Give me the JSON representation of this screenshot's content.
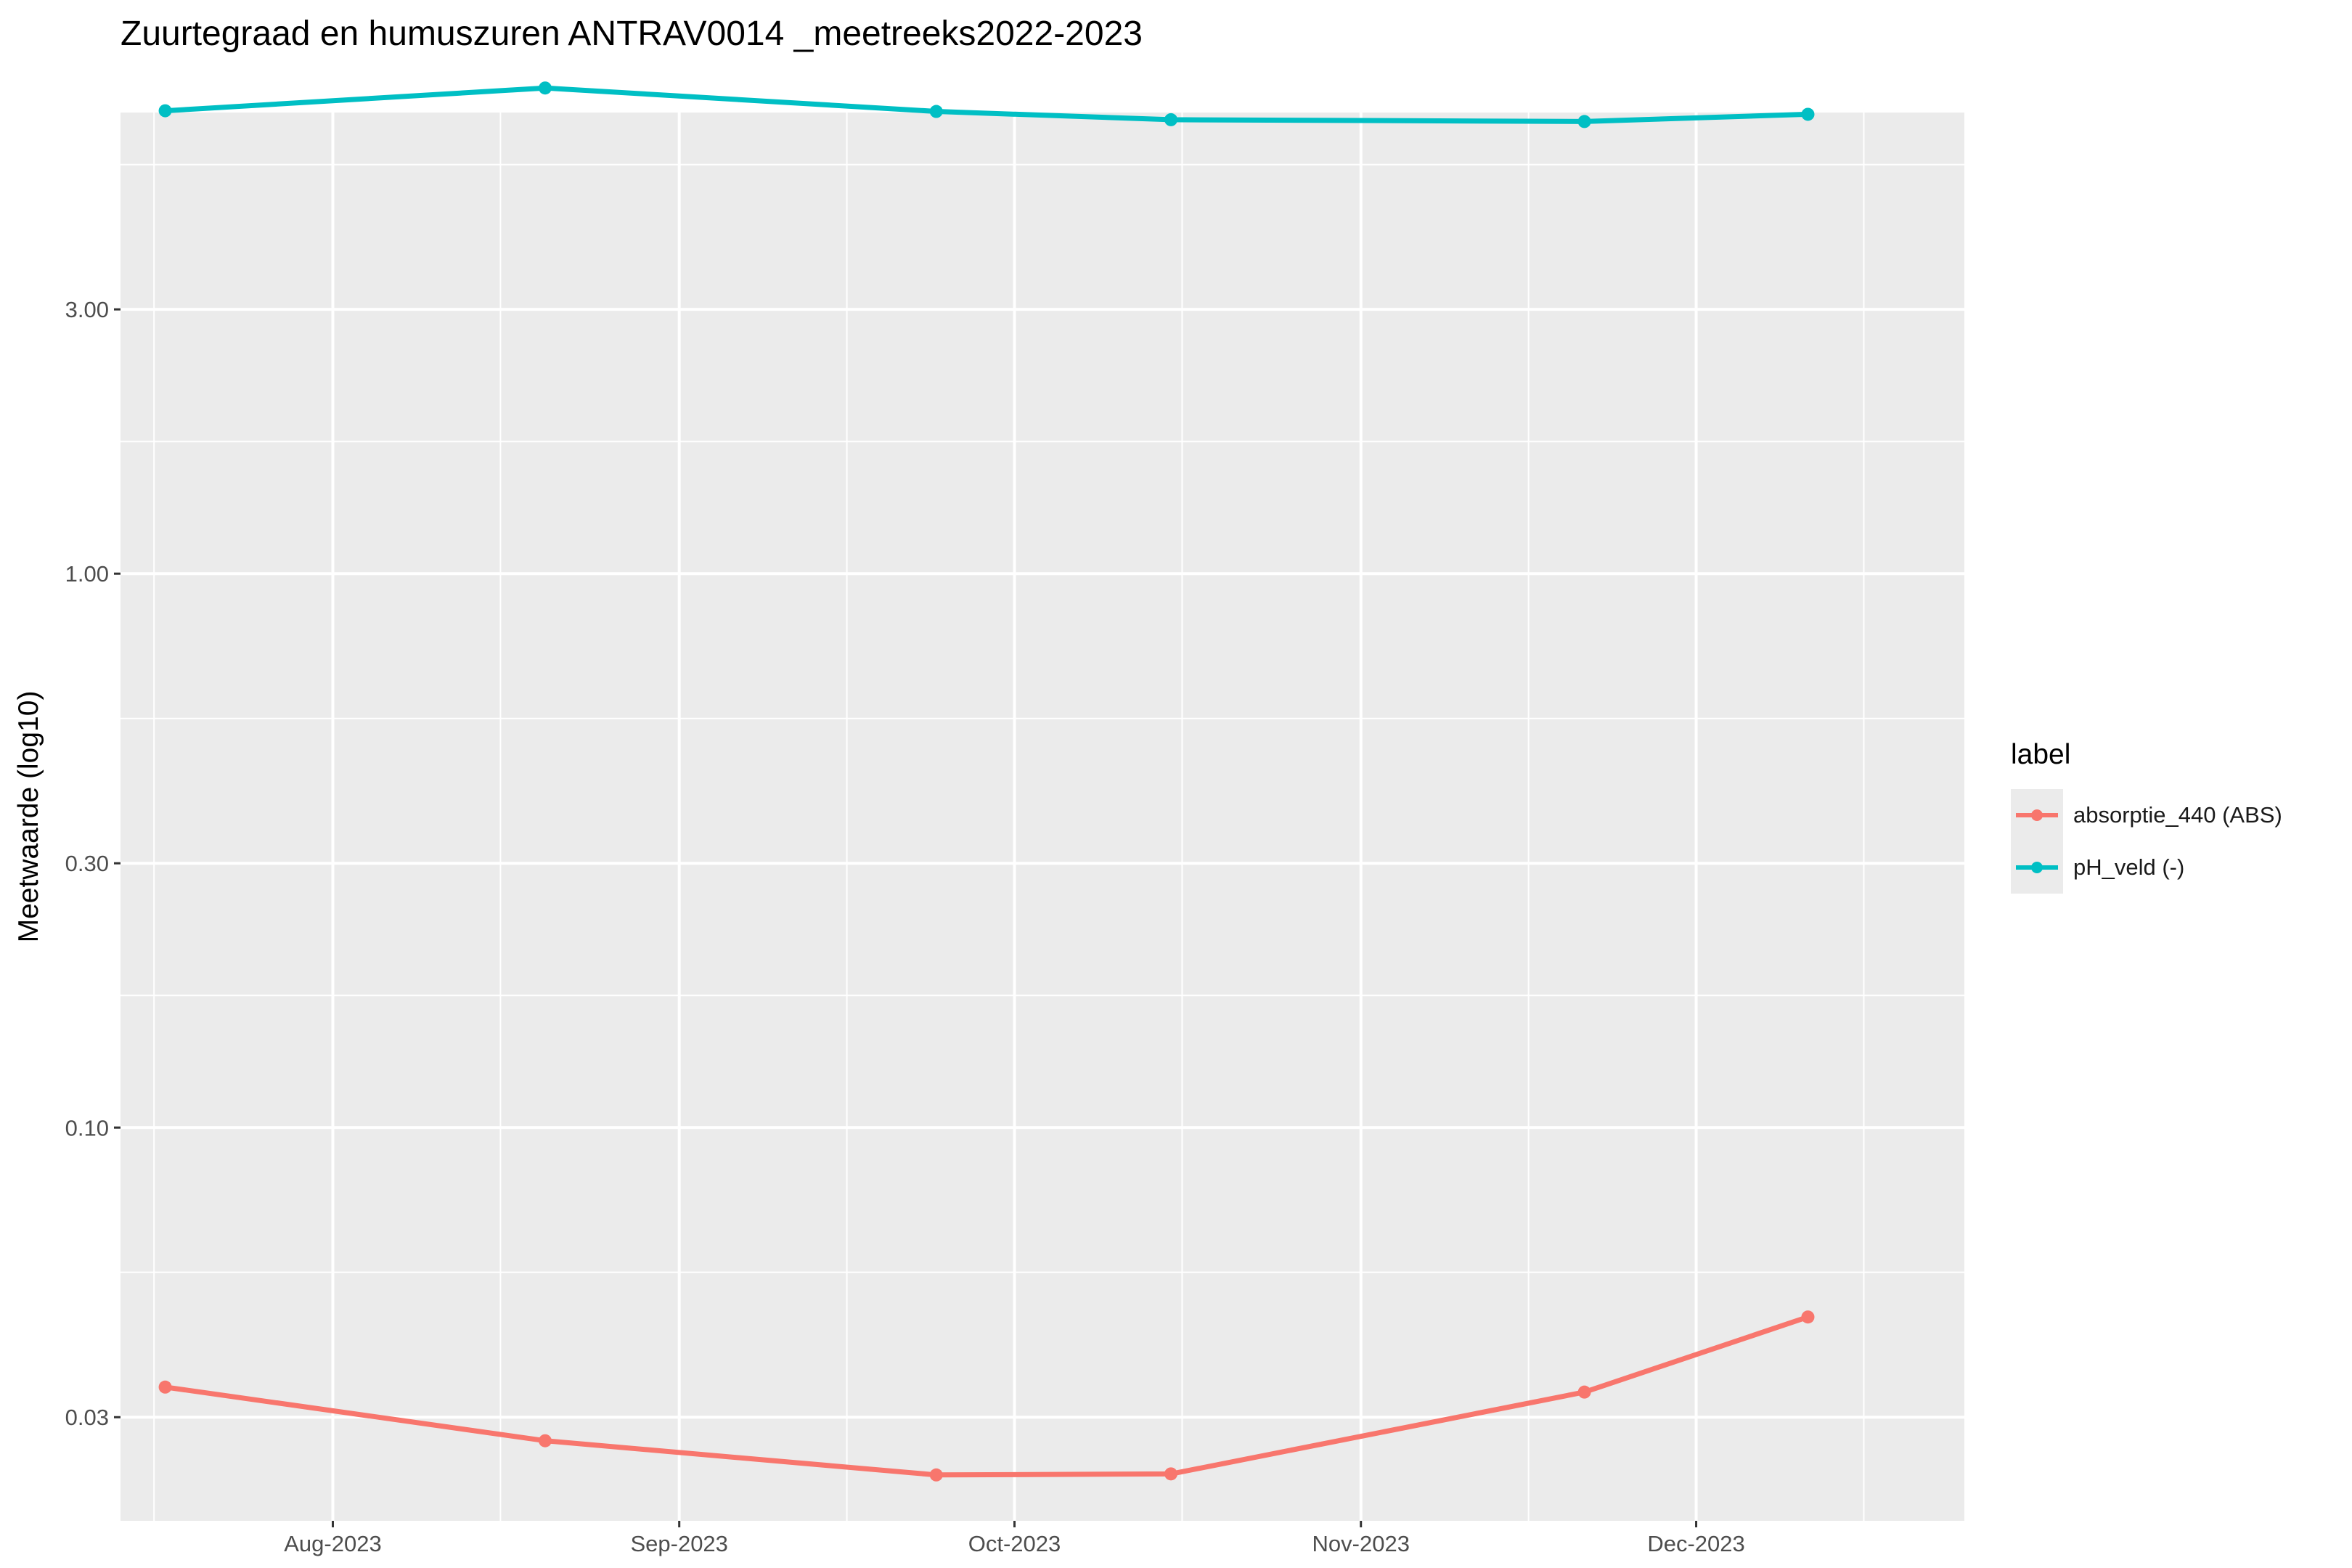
{
  "chart_data": {
    "type": "line",
    "title": "Zuurtegraad en humuszuren ANTRAV0014 _meetreeks2022-2023",
    "xlabel": "",
    "ylabel": "Meetwaarde (log10)",
    "y_scale": "log10",
    "ylim": [
      0.0195,
      6.8
    ],
    "xlim": [
      "2023-07-13",
      "2023-12-25"
    ],
    "y_ticks": [
      {
        "value": 0.03,
        "label": "0.03"
      },
      {
        "value": 0.1,
        "label": "0.10"
      },
      {
        "value": 0.3,
        "label": "0.30"
      },
      {
        "value": 1,
        "label": "1.00"
      },
      {
        "value": 3,
        "label": "3.00"
      }
    ],
    "y_minor_ticks": [
      0.0548,
      0.1732,
      0.5477,
      1.7321,
      5.4772
    ],
    "x_ticks": [
      {
        "date": "2023-08-01",
        "label": "Aug-2023"
      },
      {
        "date": "2023-09-01",
        "label": "Sep-2023"
      },
      {
        "date": "2023-10-01",
        "label": "Oct-2023"
      },
      {
        "date": "2023-11-01",
        "label": "Nov-2023"
      },
      {
        "date": "2023-12-01",
        "label": "Dec-2023"
      }
    ],
    "x_minor_ticks": [
      "2023-07-16",
      "2023-08-16",
      "2023-09-16",
      "2023-10-16",
      "2023-11-16",
      "2023-12-16"
    ],
    "grid": true,
    "legend": {
      "title": "label",
      "position": "right"
    },
    "series": [
      {
        "name": "absorptie_440 (ABS)",
        "color": "#F8766D",
        "points": [
          {
            "x": "2023-07-17",
            "y": 0.034
          },
          {
            "x": "2023-08-20",
            "y": 0.0272
          },
          {
            "x": "2023-09-24",
            "y": 0.0236
          },
          {
            "x": "2023-10-15",
            "y": 0.0237
          },
          {
            "x": "2023-11-21",
            "y": 0.0333
          },
          {
            "x": "2023-12-11",
            "y": 0.0455
          }
        ]
      },
      {
        "name": "pH_veld (-)",
        "color": "#00BFC4",
        "points": [
          {
            "x": "2023-07-17",
            "y": 6.85
          },
          {
            "x": "2023-08-20",
            "y": 7.53
          },
          {
            "x": "2023-09-24",
            "y": 6.83
          },
          {
            "x": "2023-10-15",
            "y": 6.6
          },
          {
            "x": "2023-11-21",
            "y": 6.55
          },
          {
            "x": "2023-12-11",
            "y": 6.75
          }
        ]
      }
    ]
  }
}
